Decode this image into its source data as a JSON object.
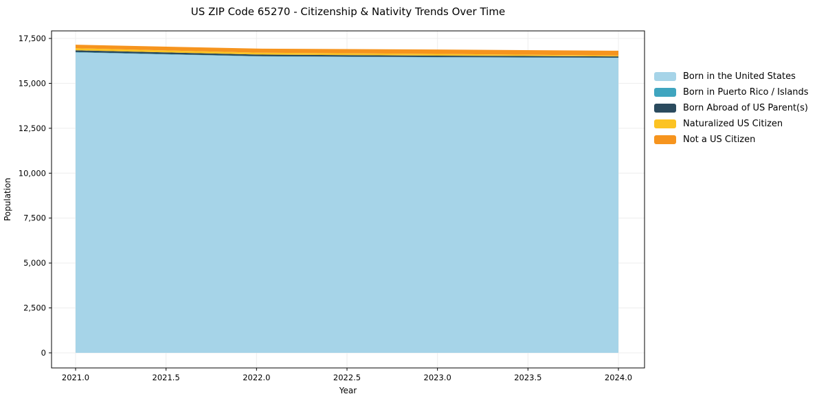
{
  "title": "US ZIP Code 65270 - Citizenship & Nativity Trends Over Time",
  "chart_data": {
    "type": "area",
    "stacked": true,
    "title": "US ZIP Code 65270 - Citizenship & Nativity Trends Over Time",
    "xlabel": "Year",
    "ylabel": "Population",
    "x": [
      2021,
      2022,
      2023,
      2024
    ],
    "series": [
      {
        "name": "Born in the United States",
        "color": "#a6d4e8",
        "values": [
          16720,
          16500,
          16450,
          16420
        ]
      },
      {
        "name": "Born in Puerto Rico / Islands",
        "color": "#3fa5bf",
        "values": [
          20,
          15,
          15,
          10
        ]
      },
      {
        "name": "Born Abroad of US Parent(s)",
        "color": "#2b4b5e",
        "values": [
          100,
          90,
          80,
          70
        ]
      },
      {
        "name": "Naturalized US Citizen",
        "color": "#fcc323",
        "values": [
          115,
          105,
          95,
          50
        ]
      },
      {
        "name": "Not a US Citizen",
        "color": "#f6941e",
        "values": [
          195,
          225,
          245,
          265
        ]
      }
    ],
    "xticks": [
      2021.0,
      2021.5,
      2022.0,
      2022.5,
      2023.0,
      2023.5,
      2024.0
    ],
    "xtick_labels": [
      "2021.0",
      "2021.5",
      "2022.0",
      "2022.5",
      "2023.0",
      "2023.5",
      "2024.0"
    ],
    "yticks": [
      0,
      2500,
      5000,
      7500,
      10000,
      12500,
      15000,
      17500
    ],
    "ytick_labels": [
      "0",
      "2,500",
      "5,000",
      "7,500",
      "10,000",
      "12,500",
      "15,000",
      "17,500"
    ],
    "xlim": [
      2020.87,
      2024.14
    ],
    "ylim": [
      -840,
      17920
    ],
    "grid": true,
    "legend_position": "right",
    "axis_color": "#000000",
    "grid_color": "#ededed",
    "tick_label_color": "#000000"
  }
}
